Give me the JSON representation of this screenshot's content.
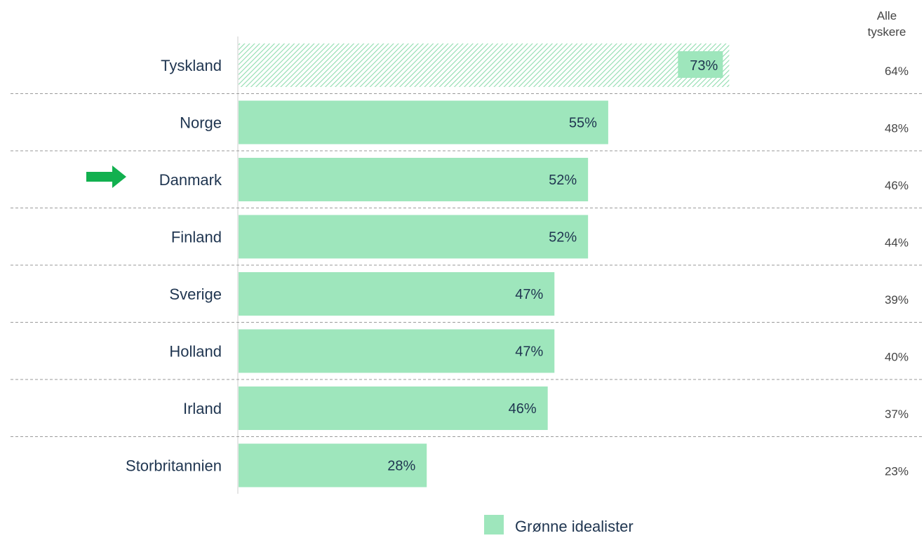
{
  "chart_data": {
    "type": "bar",
    "orientation": "horizontal",
    "categories": [
      "Tyskland",
      "Norge",
      "Danmark",
      "Finland",
      "Sverige",
      "Holland",
      "Irland",
      "Storbritannien"
    ],
    "series": [
      {
        "name": "Grønne idealister",
        "values": [
          73,
          55,
          52,
          52,
          47,
          47,
          46,
          28
        ],
        "labels": [
          "73%",
          "55%",
          "52%",
          "52%",
          "47%",
          "47%",
          "46%",
          "28%"
        ],
        "color": "#9ee6bc"
      }
    ],
    "side_column": {
      "header_line1": "Alle",
      "header_line2": "tyskere",
      "values": [
        64,
        48,
        46,
        44,
        39,
        40,
        37,
        23
      ],
      "labels": [
        "64%",
        "48%",
        "46%",
        "44%",
        "39%",
        "40%",
        "37%",
        "23%"
      ]
    },
    "highlight_category": "Danmark",
    "hatched_category": "Tyskland",
    "xlim": [
      0,
      100
    ],
    "legend": {
      "placement": "bottom-center",
      "label": "Grønne idealister"
    },
    "colors": {
      "bar": "#9ee6bc",
      "hatch": "#8fdcae",
      "arrow": "#12b04f",
      "text": "#1f3550",
      "divider": "#9a9a9a"
    }
  }
}
